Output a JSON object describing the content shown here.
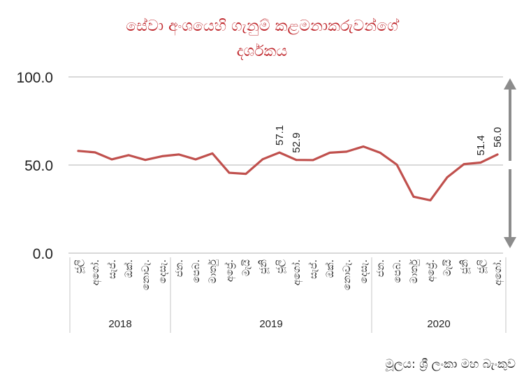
{
  "chart_data": {
    "type": "line",
    "title_line1": "සේවා අංශයෙහි ගැනුම් කළමනාකරුවන්ගේ",
    "title_line2": "දර්ශකය",
    "ylim": [
      0,
      100
    ],
    "yticks": [
      "100.0",
      "50.0",
      "0.0"
    ],
    "series_color": "#c0504d",
    "categories": [
      "ජූලි",
      "අගෝ.",
      "සැප්.",
      "ඔක්.",
      "නොවැ.",
      "දෙසැ.",
      "ජන.",
      "පෙබ.",
      "මාර්තු",
      "අප්‍රේ.",
      "මැයි",
      "ජූනි",
      "ජූලි",
      "අගෝ.",
      "සැප්.",
      "ඔක්.",
      "නොවැ.",
      "දෙසැ.",
      "ජන.",
      "පෙබ.",
      "මාර්තු",
      "අප්‍රේ.",
      "මැයි",
      "ජූනි",
      "ජූලි",
      "අගෝ."
    ],
    "years": [
      {
        "label": "2018",
        "start": 0,
        "end": 5
      },
      {
        "label": "2019",
        "start": 6,
        "end": 17
      },
      {
        "label": "2020",
        "start": 18,
        "end": 25
      }
    ],
    "values": [
      58.0,
      57.2,
      53.2,
      55.6,
      52.9,
      55.0,
      56.0,
      53.2,
      56.6,
      45.6,
      45.0,
      53.3,
      57.1,
      52.9,
      52.8,
      57.0,
      57.6,
      60.5,
      57.0,
      50.2,
      32.0,
      30.0,
      43.0,
      50.5,
      51.4,
      56.0
    ],
    "data_labels": [
      {
        "index": 12,
        "text": "57.1"
      },
      {
        "index": 13,
        "text": "52.9"
      },
      {
        "index": 24,
        "text": "51.4"
      },
      {
        "index": 25,
        "text": "56.0"
      }
    ],
    "threshold_arrow_at": 50
  },
  "source": "මූලය: ශ්‍රී ලංකා මහ බැංකුව"
}
